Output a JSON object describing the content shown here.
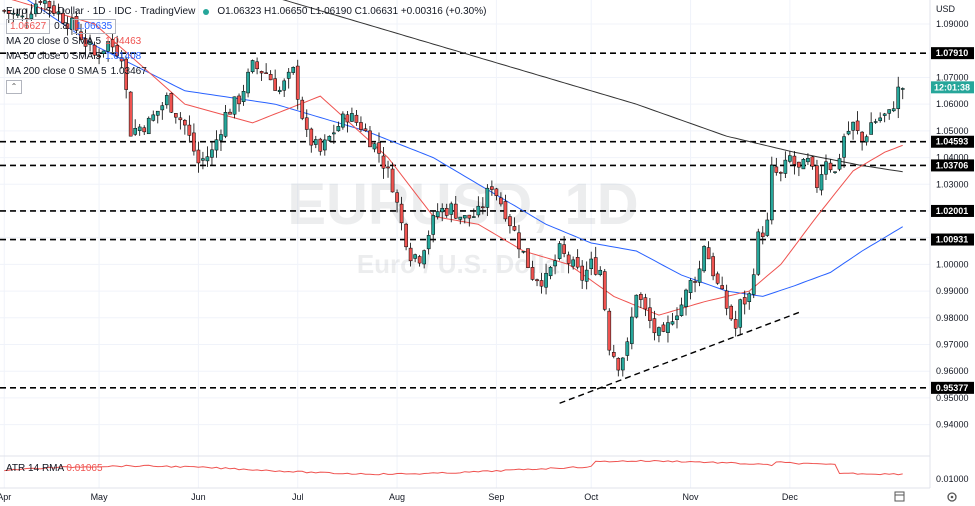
{
  "header": {
    "title": "Euro / U.S. Dollar · 1D · IDC · TradingView",
    "ohlc": "O1.06323 H1.06650 L1.06190 C1.06631 +0.00316 (+0.30%)",
    "bid": "1.06627",
    "spread": "0.8",
    "ask": "1.06635"
  },
  "indicators": [
    {
      "label": "MA 20 close 0 SMA 5",
      "value": "1.04463",
      "color": "#ef5350"
    },
    {
      "label": "MA 50 close 0 SMA 5",
      "value": "1.01408",
      "color": "#2962ff"
    },
    {
      "label": "MA 200 close 0 SMA 5",
      "value": "1.03467",
      "color": "#131722"
    }
  ],
  "watermark": {
    "symbol": "EURUSD, 1D",
    "name": "Euro / U.S. Dollar"
  },
  "price_axis": {
    "currency": "USD",
    "last_price_time": "12:01:38"
  },
  "atr": {
    "label": "ATR 14 RMA",
    "value": "0.01065",
    "axis_tick": "0.01000"
  },
  "chart_data": {
    "type": "candlestick",
    "y_ticks": [
      0.94,
      0.95,
      0.96,
      0.97,
      0.98,
      0.99,
      1.0,
      1.01,
      1.02,
      1.03,
      1.04,
      1.05,
      1.06,
      1.07,
      1.09
    ],
    "ylim": [
      0.929,
      1.099
    ],
    "x_tick_labels": [
      "Apr",
      "May",
      "Jun",
      "Jul",
      "Aug",
      "Sep",
      "Oct",
      "Nov",
      "Dec"
    ],
    "x_tick_index": [
      0,
      21,
      43,
      65,
      87,
      109,
      130,
      152,
      174
    ],
    "horizontal_levels": [
      1.0791,
      1.04593,
      1.03706,
      1.02001,
      1.00931,
      0.95377
    ],
    "trendline": {
      "from": [
        123,
        0.948
      ],
      "to": [
        176,
        0.982
      ]
    },
    "close_path": [
      [
        0,
        1.095
      ],
      [
        4,
        1.092
      ],
      [
        8,
        1.1
      ],
      [
        12,
        1.094
      ],
      [
        16,
        1.088
      ],
      [
        20,
        1.078
      ],
      [
        23,
        1.083
      ],
      [
        26,
        1.079
      ],
      [
        28,
        1.05
      ],
      [
        32,
        1.053
      ],
      [
        36,
        1.062
      ],
      [
        40,
        1.052
      ],
      [
        43,
        1.038
      ],
      [
        46,
        1.042
      ],
      [
        49,
        1.056
      ],
      [
        52,
        1.062
      ],
      [
        55,
        1.074
      ],
      [
        58,
        1.072
      ],
      [
        61,
        1.065
      ],
      [
        64,
        1.072
      ],
      [
        67,
        1.048
      ],
      [
        70,
        1.042
      ],
      [
        73,
        1.05
      ],
      [
        76,
        1.056
      ],
      [
        79,
        1.052
      ],
      [
        83,
        1.042
      ],
      [
        86,
        1.03
      ],
      [
        88,
        1.015
      ],
      [
        90,
        1.004
      ],
      [
        92,
        1.003
      ],
      [
        94,
        1.012
      ],
      [
        96,
        1.02
      ],
      [
        99,
        1.021
      ],
      [
        102,
        1.017
      ],
      [
        105,
        1.019
      ],
      [
        108,
        1.03
      ],
      [
        111,
        1.02
      ],
      [
        114,
        1.008
      ],
      [
        117,
        0.996
      ],
      [
        120,
        0.994
      ],
      [
        123,
        1.005
      ],
      [
        126,
        0.999
      ],
      [
        128,
        0.995
      ],
      [
        130,
        1.0
      ],
      [
        132,
        0.998
      ],
      [
        134,
        0.97
      ],
      [
        136,
        0.963
      ],
      [
        138,
        0.969
      ],
      [
        140,
        0.99
      ],
      [
        142,
        0.982
      ],
      [
        144,
        0.975
      ],
      [
        146,
        0.972
      ],
      [
        148,
        0.981
      ],
      [
        150,
        0.985
      ],
      [
        152,
        0.993
      ],
      [
        154,
        0.998
      ],
      [
        155,
        1.008
      ],
      [
        158,
        0.992
      ],
      [
        161,
        0.98
      ],
      [
        162,
        0.976
      ],
      [
        163,
        0.985
      ],
      [
        165,
        0.988
      ],
      [
        167,
        1.01
      ],
      [
        169,
        1.015
      ],
      [
        170,
        1.035
      ],
      [
        172,
        1.033
      ],
      [
        174,
        1.04
      ],
      [
        176,
        1.035
      ],
      [
        178,
        1.038
      ],
      [
        180,
        1.03
      ],
      [
        182,
        1.04
      ],
      [
        184,
        1.034
      ],
      [
        186,
        1.048
      ],
      [
        188,
        1.052
      ],
      [
        190,
        1.046
      ],
      [
        192,
        1.053
      ],
      [
        194,
        1.055
      ],
      [
        196,
        1.056
      ],
      [
        198,
        1.065
      ],
      [
        199,
        1.0663
      ]
    ],
    "ma20_path": [
      [
        0,
        1.1
      ],
      [
        20,
        1.09
      ],
      [
        40,
        1.06
      ],
      [
        55,
        1.053
      ],
      [
        70,
        1.063
      ],
      [
        85,
        1.04
      ],
      [
        95,
        1.018
      ],
      [
        105,
        1.015
      ],
      [
        115,
        1.005
      ],
      [
        125,
        1.0
      ],
      [
        135,
        0.988
      ],
      [
        145,
        0.981
      ],
      [
        155,
        0.986
      ],
      [
        165,
        0.99
      ],
      [
        172,
        1.0
      ],
      [
        180,
        1.018
      ],
      [
        188,
        1.035
      ],
      [
        195,
        1.042
      ],
      [
        199,
        1.0446
      ]
    ],
    "ma50_path": [
      [
        0,
        1.105
      ],
      [
        20,
        1.082
      ],
      [
        40,
        1.065
      ],
      [
        60,
        1.06
      ],
      [
        80,
        1.05
      ],
      [
        95,
        1.04
      ],
      [
        110,
        1.025
      ],
      [
        120,
        1.015
      ],
      [
        130,
        1.008
      ],
      [
        140,
        1.005
      ],
      [
        150,
        0.996
      ],
      [
        160,
        0.99
      ],
      [
        168,
        0.988
      ],
      [
        175,
        0.992
      ],
      [
        183,
        0.997
      ],
      [
        190,
        1.005
      ],
      [
        199,
        1.0141
      ]
    ],
    "ma200_path": [
      [
        60,
        1.1
      ],
      [
        80,
        1.09
      ],
      [
        100,
        1.08
      ],
      [
        120,
        1.07
      ],
      [
        140,
        1.06
      ],
      [
        160,
        1.048
      ],
      [
        175,
        1.042
      ],
      [
        190,
        1.037
      ],
      [
        199,
        1.0347
      ]
    ]
  }
}
